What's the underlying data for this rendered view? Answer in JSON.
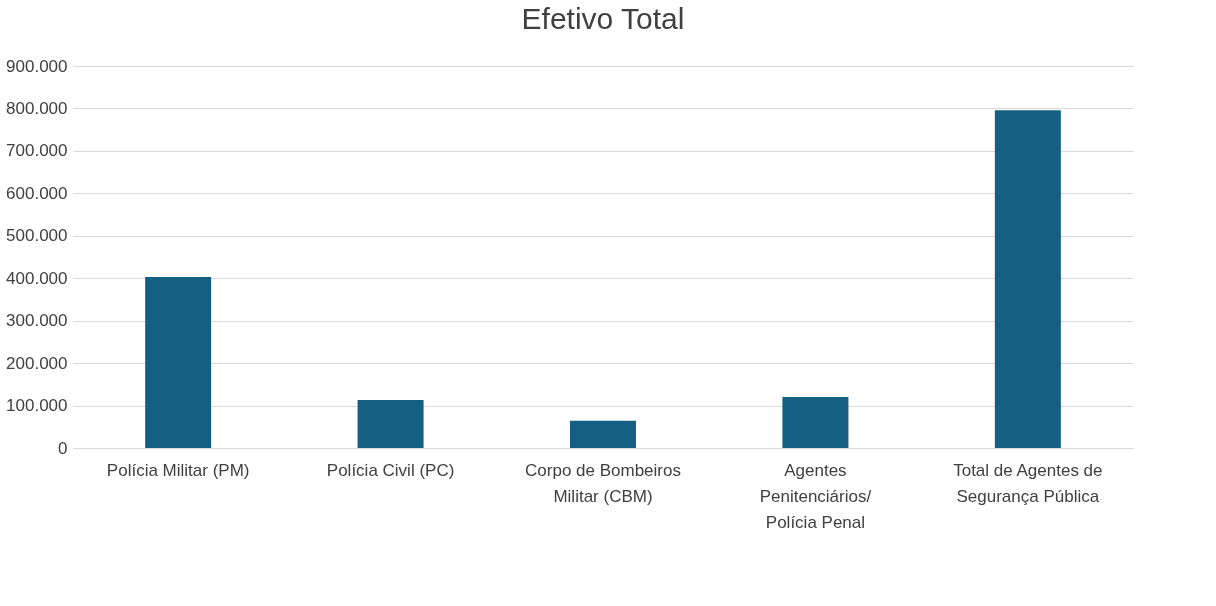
{
  "chart_data": {
    "type": "bar",
    "title": "Efetivo Total",
    "categories": [
      "Polícia Militar (PM)",
      "Polícia Civil (PC)",
      "Corpo de Bombeiros Militar (CBM)",
      "Agentes Penitenciários/ Polícia Penal",
      "Total de Agentes de Segurança Pública"
    ],
    "values": [
      403000,
      113000,
      64000,
      120000,
      796000
    ],
    "color": "#156082",
    "ylim": [
      0,
      900000
    ],
    "yticks": [
      {
        "value": 0,
        "label": "0"
      },
      {
        "value": 100000,
        "label": "100.000"
      },
      {
        "value": 200000,
        "label": "200.000"
      },
      {
        "value": 300000,
        "label": "300.000"
      },
      {
        "value": 400000,
        "label": "400.000"
      },
      {
        "value": 500000,
        "label": "500.000"
      },
      {
        "value": 600000,
        "label": "600.000"
      },
      {
        "value": 700000,
        "label": "700.000"
      },
      {
        "value": 800000,
        "label": "800.000"
      },
      {
        "value": 900000,
        "label": "900.000"
      }
    ],
    "grid": "y"
  }
}
